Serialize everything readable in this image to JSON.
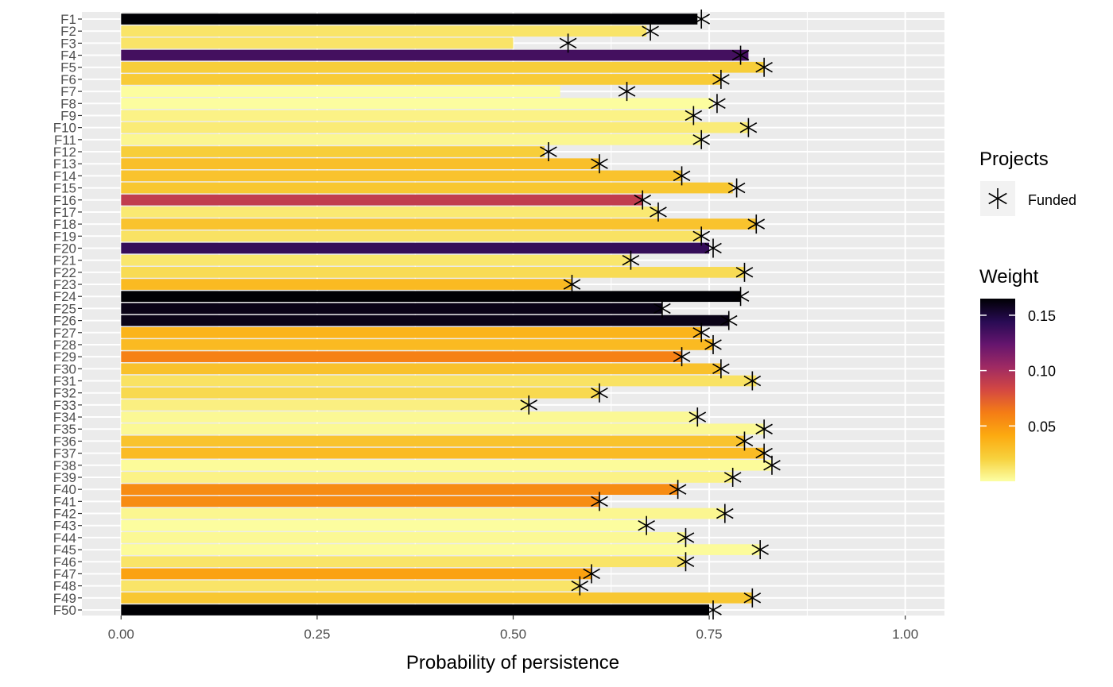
{
  "chart_data": {
    "type": "bar",
    "orientation": "horizontal",
    "categories": [
      "F1",
      "F2",
      "F3",
      "F4",
      "F5",
      "F6",
      "F7",
      "F8",
      "F9",
      "F10",
      "F11",
      "F12",
      "F13",
      "F14",
      "F15",
      "F16",
      "F17",
      "F18",
      "F19",
      "F20",
      "F21",
      "F22",
      "F23",
      "F24",
      "F25",
      "F26",
      "F27",
      "F28",
      "F29",
      "F30",
      "F31",
      "F32",
      "F33",
      "F34",
      "F35",
      "F36",
      "F37",
      "F38",
      "F39",
      "F40",
      "F41",
      "F42",
      "F43",
      "F44",
      "F45",
      "F46",
      "F47",
      "F48",
      "F49",
      "F50"
    ],
    "series": [
      {
        "values": [
          0.735,
          0.67,
          0.5,
          0.8,
          0.82,
          0.765,
          0.56,
          0.755,
          0.73,
          0.8,
          0.74,
          0.54,
          0.61,
          0.715,
          0.78,
          0.665,
          0.685,
          0.81,
          0.74,
          0.75,
          0.65,
          0.795,
          0.575,
          0.79,
          0.69,
          0.775,
          0.74,
          0.755,
          0.715,
          0.765,
          0.81,
          0.61,
          0.52,
          0.735,
          0.82,
          0.795,
          0.82,
          0.83,
          0.78,
          0.71,
          0.61,
          0.77,
          0.67,
          0.72,
          0.815,
          0.72,
          0.6,
          0.585,
          0.805,
          0.75
        ],
        "weights": [
          0.165,
          0.012,
          0.012,
          0.135,
          0.022,
          0.024,
          0.001,
          0.001,
          0.006,
          0.009,
          0.004,
          0.022,
          0.03,
          0.028,
          0.026,
          0.09,
          0.01,
          0.028,
          0.013,
          0.14,
          0.011,
          0.016,
          0.033,
          0.165,
          0.16,
          0.16,
          0.036,
          0.033,
          0.06,
          0.029,
          0.013,
          0.017,
          0.007,
          0.003,
          0.003,
          0.028,
          0.032,
          0.002,
          0.006,
          0.055,
          0.055,
          0.004,
          0.001,
          0.003,
          0.002,
          0.012,
          0.045,
          0.012,
          0.026,
          0.165
        ]
      },
      {
        "name": "Funded",
        "values": [
          0.74,
          0.675,
          0.57,
          0.79,
          0.82,
          0.765,
          0.645,
          0.76,
          0.73,
          0.8,
          0.74,
          0.545,
          0.61,
          0.715,
          0.785,
          0.665,
          0.685,
          0.81,
          0.74,
          0.755,
          0.65,
          0.795,
          0.575,
          0.79,
          0.69,
          0.775,
          0.74,
          0.755,
          0.715,
          0.765,
          0.805,
          0.61,
          0.52,
          0.735,
          0.82,
          0.795,
          0.82,
          0.83,
          0.78,
          0.71,
          0.61,
          0.77,
          0.67,
          0.72,
          0.815,
          0.72,
          0.6,
          0.585,
          0.805,
          0.755
        ]
      }
    ],
    "xlabel": "Probability of persistence",
    "ylabel": "",
    "xlim": [
      -0.05,
      1.05
    ],
    "xticks": [
      0,
      0.25,
      0.5,
      0.75,
      1
    ],
    "xtick_labels": [
      "0.00",
      "0.25",
      "0.50",
      "0.75",
      "1.00"
    ],
    "grid": true,
    "legend": {
      "placement": "right",
      "shape_title": "Projects",
      "shape_label": "Funded",
      "color_title": "Weight",
      "color_range": [
        0,
        0.165
      ],
      "color_ticks": [
        0.05,
        0.1,
        0.15
      ],
      "color_tick_labels": [
        "0.05",
        "0.10",
        "0.15"
      ]
    },
    "palette": [
      "#fcffa4",
      "#f7d13d",
      "#fcaa10",
      "#f57d15",
      "#d44842",
      "#9f2a63",
      "#65156e",
      "#280b53",
      "#000004"
    ],
    "panel_background": "#ebebeb",
    "grid_color": "#ffffff"
  }
}
